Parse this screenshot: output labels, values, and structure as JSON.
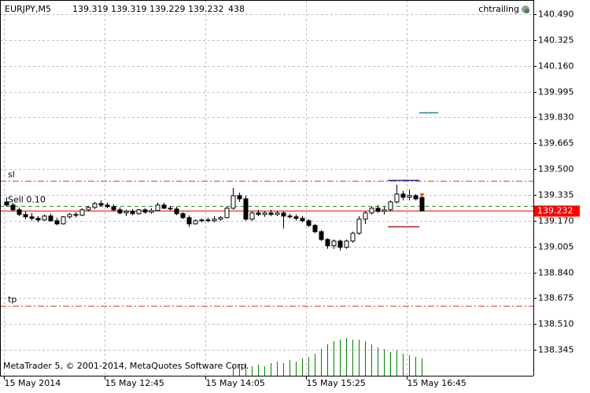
{
  "chart_data": {
    "type": "candlestick",
    "symbol": "EURJPY,M5",
    "indicator": "chtrailing",
    "copyright": "MetaTrader 5, © 2001-2014, MetaQuotes Software Corp.",
    "open": [
      139.29,
      139.27,
      139.24,
      139.21,
      139.195,
      139.185,
      139.175,
      139.2,
      139.17,
      139.15,
      139.195,
      139.21,
      139.205,
      139.24,
      139.255,
      139.28,
      139.27,
      139.26,
      139.24,
      139.22,
      139.23,
      139.215,
      139.24,
      139.225,
      139.235,
      139.27,
      139.25,
      139.245,
      139.215,
      139.19,
      139.15,
      139.17,
      139.175,
      139.17,
      139.18,
      139.19,
      139.25,
      139.33,
      139.31,
      139.18,
      139.22,
      139.21,
      139.22,
      139.21,
      139.22,
      139.2,
      139.195,
      139.185,
      139.17,
      139.14,
      139.1,
      139.05,
      139.01,
      139.04,
      139.0,
      139.04,
      139.09,
      139.18,
      139.22,
      139.25,
      139.23,
      139.24,
      139.29,
      139.34,
      139.32,
      139.33,
      139.319
    ],
    "high": [
      139.32,
      139.285,
      139.255,
      139.23,
      139.22,
      139.2,
      139.21,
      139.215,
      139.19,
      139.2,
      139.22,
      139.225,
      139.25,
      139.265,
      139.29,
      139.3,
      139.285,
      139.275,
      139.255,
      139.24,
      139.245,
      139.245,
      139.25,
      139.25,
      139.285,
      139.285,
      139.265,
      139.26,
      139.225,
      139.205,
      139.18,
      139.185,
      139.19,
      139.2,
      139.2,
      139.26,
      139.38,
      139.35,
      139.33,
      139.23,
      139.24,
      139.23,
      139.24,
      139.23,
      139.23,
      139.215,
      139.21,
      139.2,
      139.18,
      139.15,
      139.11,
      139.06,
      139.05,
      139.05,
      139.05,
      139.1,
      139.2,
      139.23,
      139.26,
      139.27,
      139.26,
      139.3,
      139.4,
      139.36,
      139.37,
      139.34,
      139.319
    ],
    "low": [
      139.26,
      139.23,
      139.2,
      139.18,
      139.17,
      139.16,
      139.17,
      139.165,
      139.14,
      139.145,
      139.185,
      139.19,
      139.2,
      139.23,
      139.245,
      139.26,
      139.25,
      139.23,
      139.21,
      139.2,
      139.205,
      139.21,
      139.215,
      139.215,
      139.23,
      139.245,
      139.235,
      139.205,
      139.18,
      139.13,
      139.145,
      139.16,
      139.16,
      139.16,
      139.17,
      139.185,
      139.24,
      139.29,
      139.17,
      139.17,
      139.2,
      139.195,
      139.2,
      139.2,
      139.12,
      139.185,
      139.17,
      139.16,
      139.13,
      139.09,
      139.04,
      138.99,
      138.99,
      138.98,
      138.99,
      139.03,
      139.08,
      139.15,
      139.21,
      139.22,
      139.21,
      139.23,
      139.28,
      139.3,
      139.3,
      139.3,
      139.229
    ],
    "close": [
      139.27,
      139.24,
      139.21,
      139.195,
      139.185,
      139.175,
      139.2,
      139.17,
      139.15,
      139.195,
      139.21,
      139.205,
      139.24,
      139.255,
      139.28,
      139.27,
      139.26,
      139.24,
      139.22,
      139.23,
      139.215,
      139.24,
      139.225,
      139.235,
      139.27,
      139.25,
      139.245,
      139.215,
      139.19,
      139.15,
      139.17,
      139.175,
      139.17,
      139.18,
      139.19,
      139.25,
      139.33,
      139.31,
      139.18,
      139.22,
      139.21,
      139.22,
      139.21,
      139.22,
      139.2,
      139.195,
      139.185,
      139.17,
      139.14,
      139.1,
      139.05,
      139.01,
      139.04,
      139.0,
      139.04,
      139.09,
      139.18,
      139.22,
      139.25,
      139.23,
      139.24,
      139.29,
      139.34,
      139.32,
      139.33,
      139.31,
      139.232
    ],
    "volume": [
      null,
      null,
      null,
      null,
      null,
      null,
      null,
      null,
      null,
      null,
      null,
      null,
      null,
      null,
      null,
      null,
      null,
      null,
      null,
      null,
      null,
      null,
      null,
      null,
      null,
      null,
      null,
      null,
      null,
      null,
      null,
      null,
      null,
      null,
      null,
      null,
      240,
      280,
      320,
      240,
      280,
      240,
      320,
      360,
      320,
      400,
      360,
      440,
      480,
      560,
      680,
      800,
      880,
      920,
      960,
      920,
      920,
      880,
      800,
      720,
      680,
      600,
      640,
      560,
      520,
      480,
      438
    ],
    "ylim": [
      138.18,
      140.58
    ],
    "yticks": [
      {
        "value": 140.49,
        "label": "140.490"
      },
      140.325,
      {
        "value": 140.16,
        "label": "140.160"
      },
      139.995,
      {
        "value": 139.83,
        "label": "139.830"
      },
      139.665,
      {
        "value": 139.5,
        "label": "139.500"
      },
      139.335,
      {
        "value": 139.17,
        "label": "139.170"
      },
      139.005,
      {
        "value": 138.84,
        "label": "138.840"
      },
      138.675,
      {
        "value": 138.51,
        "label": "138.510"
      },
      138.345
    ],
    "xticks": [
      {
        "value": 0,
        "label": "15 May 2014"
      },
      {
        "value": 16,
        "label": "15 May 12:45"
      },
      {
        "value": 32,
        "label": "15 May 14:05"
      },
      {
        "value": 48,
        "label": "15 May 15:25"
      },
      {
        "value": 64,
        "label": "15 May 16:45"
      }
    ],
    "levels": [
      {
        "label": "sl",
        "value": 139.425,
        "color": "#e2461c",
        "style": "dash-dot"
      },
      {
        "label": "Sell 0.10",
        "value": 139.265,
        "color": "#2e8b2e",
        "style": "dashed"
      },
      {
        "label": "tp",
        "value": 138.625,
        "color": "#e2461c",
        "style": "dash-dot"
      }
    ],
    "markers": [
      {
        "value": 139.86,
        "from": 66,
        "to": 69,
        "color": "#2a7f8f"
      },
      {
        "value": 139.43,
        "from": 61,
        "to": 66,
        "color": "#3a2aa0"
      },
      {
        "value": 139.135,
        "from": 61,
        "to": 66,
        "color": "#b02020"
      }
    ],
    "bid_color": "#ff0000",
    "grid": true
  }
}
